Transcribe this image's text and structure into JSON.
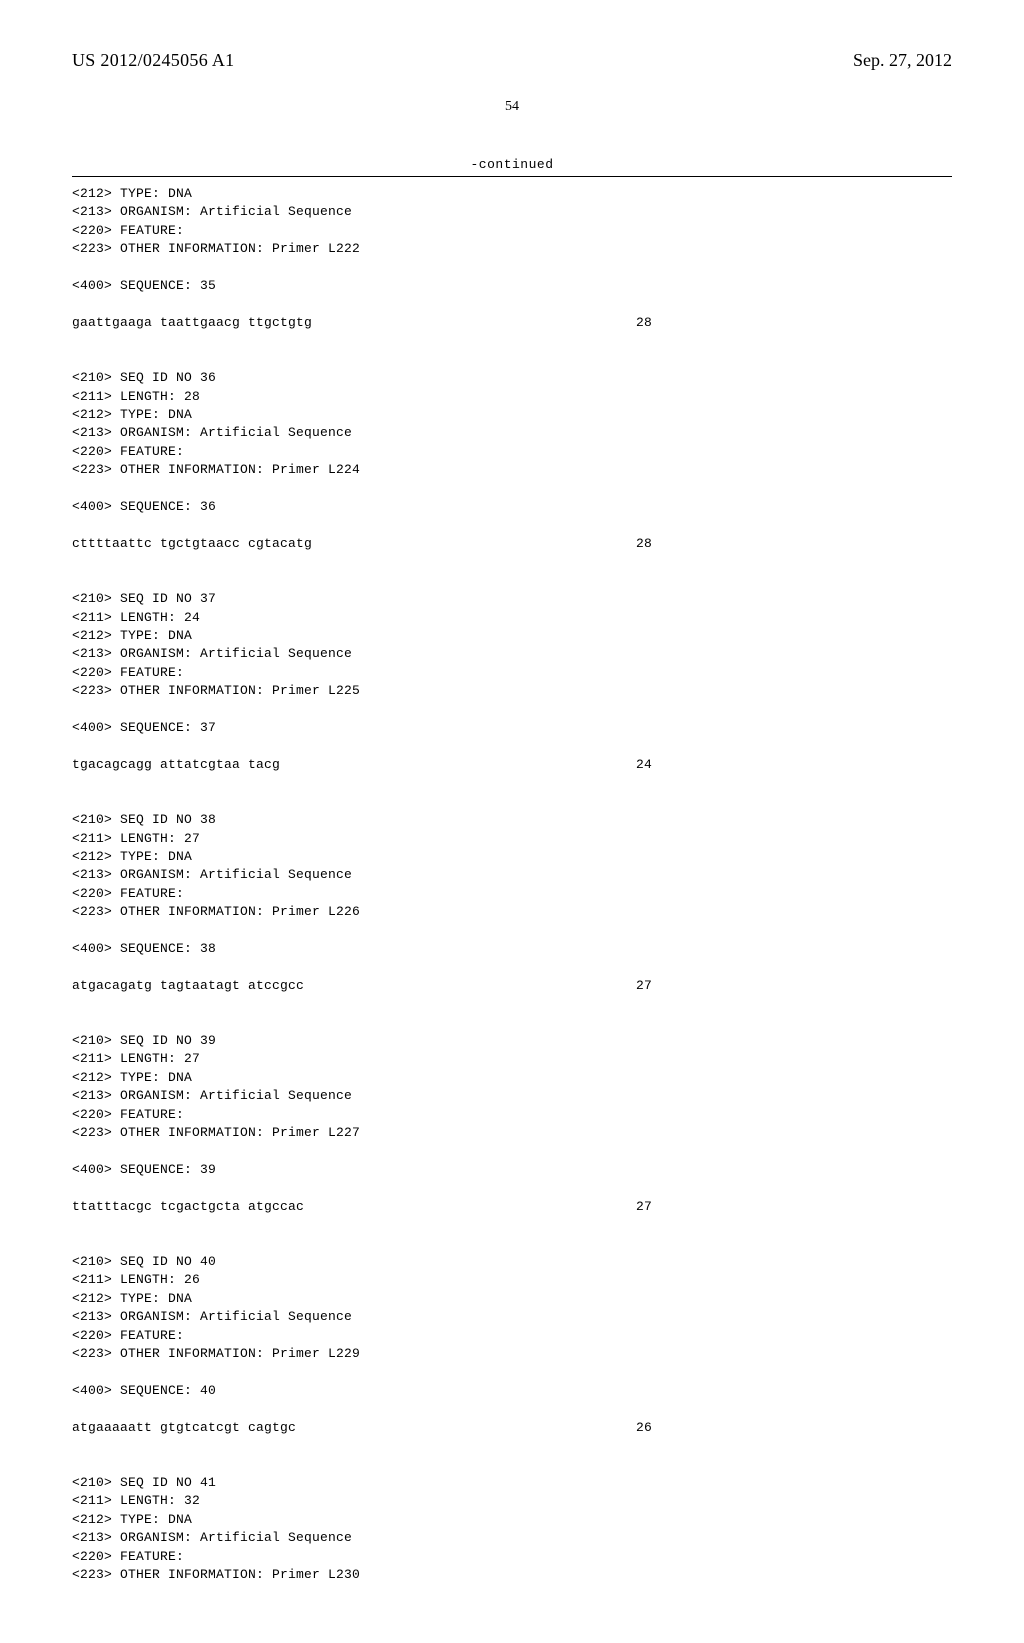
{
  "header": {
    "pubNumber": "US 2012/0245056 A1",
    "pubDate": "Sep. 27, 2012"
  },
  "pageNumber": "54",
  "continuedLabel": "-continued",
  "entries": [
    {
      "metaLines": [
        "<212> TYPE: DNA",
        "<213> ORGANISM: Artificial Sequence",
        "<220> FEATURE:",
        "<223> OTHER INFORMATION: Primer L222"
      ],
      "sequenceHeader": "<400> SEQUENCE: 35",
      "sequenceLine": "gaattgaaga taattgaacg ttgctgtg",
      "sequenceCount": "28"
    },
    {
      "metaLines": [
        "<210> SEQ ID NO 36",
        "<211> LENGTH: 28",
        "<212> TYPE: DNA",
        "<213> ORGANISM: Artificial Sequence",
        "<220> FEATURE:",
        "<223> OTHER INFORMATION: Primer L224"
      ],
      "sequenceHeader": "<400> SEQUENCE: 36",
      "sequenceLine": "cttttaattc tgctgtaacc cgtacatg",
      "sequenceCount": "28"
    },
    {
      "metaLines": [
        "<210> SEQ ID NO 37",
        "<211> LENGTH: 24",
        "<212> TYPE: DNA",
        "<213> ORGANISM: Artificial Sequence",
        "<220> FEATURE:",
        "<223> OTHER INFORMATION: Primer L225"
      ],
      "sequenceHeader": "<400> SEQUENCE: 37",
      "sequenceLine": "tgacagcagg attatcgtaa tacg",
      "sequenceCount": "24"
    },
    {
      "metaLines": [
        "<210> SEQ ID NO 38",
        "<211> LENGTH: 27",
        "<212> TYPE: DNA",
        "<213> ORGANISM: Artificial Sequence",
        "<220> FEATURE:",
        "<223> OTHER INFORMATION: Primer L226"
      ],
      "sequenceHeader": "<400> SEQUENCE: 38",
      "sequenceLine": "atgacagatg tagtaatagt atccgcc",
      "sequenceCount": "27"
    },
    {
      "metaLines": [
        "<210> SEQ ID NO 39",
        "<211> LENGTH: 27",
        "<212> TYPE: DNA",
        "<213> ORGANISM: Artificial Sequence",
        "<220> FEATURE:",
        "<223> OTHER INFORMATION: Primer L227"
      ],
      "sequenceHeader": "<400> SEQUENCE: 39",
      "sequenceLine": "ttatttacgc tcgactgcta atgccac",
      "sequenceCount": "27"
    },
    {
      "metaLines": [
        "<210> SEQ ID NO 40",
        "<211> LENGTH: 26",
        "<212> TYPE: DNA",
        "<213> ORGANISM: Artificial Sequence",
        "<220> FEATURE:",
        "<223> OTHER INFORMATION: Primer L229"
      ],
      "sequenceHeader": "<400> SEQUENCE: 40",
      "sequenceLine": "atgaaaaatt gtgtcatcgt cagtgc",
      "sequenceCount": "26"
    },
    {
      "metaLines": [
        "<210> SEQ ID NO 41",
        "<211> LENGTH: 32",
        "<212> TYPE: DNA",
        "<213> ORGANISM: Artificial Sequence",
        "<220> FEATURE:",
        "<223> OTHER INFORMATION: Primer L230"
      ],
      "sequenceHeader": null,
      "sequenceLine": null,
      "sequenceCount": null
    }
  ]
}
